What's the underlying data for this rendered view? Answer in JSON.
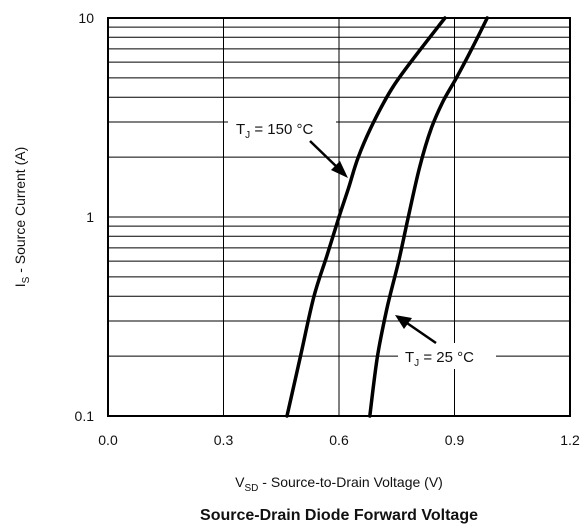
{
  "chart_data": {
    "type": "line",
    "title": "Source-Drain Diode Forward Voltage",
    "xlabel": {
      "main": "V",
      "sub": "SD",
      "rest": " - Source-to-Drain Voltage (V)"
    },
    "ylabel": {
      "main": "I",
      "sub": "S",
      "rest": " - Source Current (A)"
    },
    "x_scale": "linear",
    "y_scale": "log",
    "xlim": [
      0.0,
      1.2
    ],
    "ylim": [
      0.1,
      10
    ],
    "x_ticks": [
      "0.0",
      "0.3",
      "0.6",
      "0.9",
      "1.2"
    ],
    "y_ticks": [
      "0.1",
      "1",
      "10"
    ],
    "grid": true,
    "series": [
      {
        "name": "TJ = 150 °C",
        "label": {
          "main": "T",
          "sub": "J",
          "rest": " = 150 °C"
        },
        "points": [
          [
            0.465,
            0.1
          ],
          [
            0.5,
            0.2
          ],
          [
            0.535,
            0.4
          ],
          [
            0.57,
            0.65
          ],
          [
            0.6,
            1.0
          ],
          [
            0.625,
            1.4
          ],
          [
            0.65,
            2.0
          ],
          [
            0.69,
            3.0
          ],
          [
            0.74,
            4.5
          ],
          [
            0.8,
            6.5
          ],
          [
            0.875,
            10.0
          ]
        ]
      },
      {
        "name": "TJ = 25 °C",
        "label": {
          "main": "T",
          "sub": "J",
          "rest": " = 25 °C"
        },
        "points": [
          [
            0.68,
            0.1
          ],
          [
            0.7,
            0.2
          ],
          [
            0.725,
            0.35
          ],
          [
            0.755,
            0.6
          ],
          [
            0.78,
            1.0
          ],
          [
            0.81,
            1.8
          ],
          [
            0.84,
            2.8
          ],
          [
            0.87,
            3.8
          ],
          [
            0.905,
            5.0
          ],
          [
            0.945,
            7.0
          ],
          [
            0.985,
            10.0
          ]
        ]
      }
    ]
  }
}
